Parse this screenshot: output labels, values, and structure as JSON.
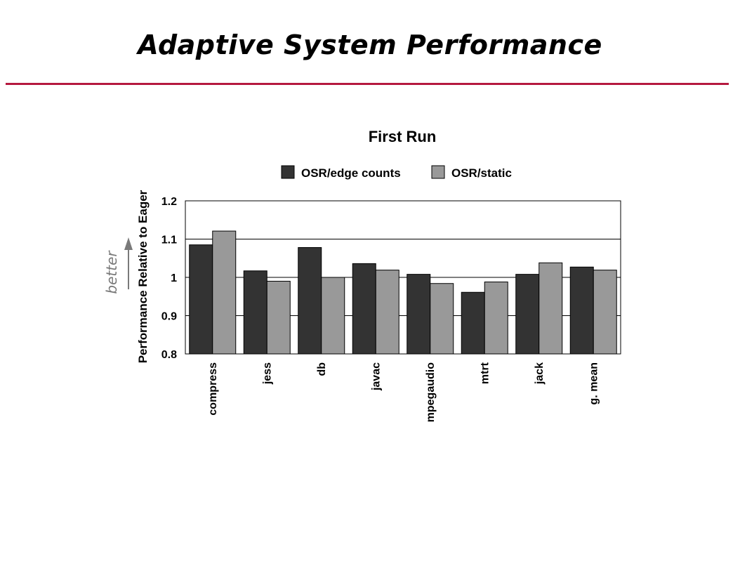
{
  "slide": {
    "title": "Adaptive System Performance",
    "rule_color": "#b5193f"
  },
  "annotation": {
    "label": "better",
    "color": "#7a7a7a"
  },
  "chart_data": {
    "type": "bar",
    "title": "First Run",
    "xlabel": "",
    "ylabel": "Performance Relative to Eager",
    "ylim": [
      0.8,
      1.2
    ],
    "yticks": [
      0.8,
      0.9,
      1,
      1.1,
      1.2
    ],
    "ytick_labels": [
      "0.8",
      "0.9",
      "1",
      "1.1",
      "1.2"
    ],
    "grid": true,
    "legend_position": "top-center",
    "categories": [
      "compress",
      "jess",
      "db",
      "javac",
      "mpegaudio",
      "mtrt",
      "jack",
      "g. mean"
    ],
    "series": [
      {
        "name": "OSR/edge counts",
        "color": "#333333",
        "values": [
          1.085,
          1.017,
          1.078,
          1.036,
          1.008,
          0.961,
          1.008,
          1.027
        ]
      },
      {
        "name": "OSR/static",
        "color": "#999999",
        "values": [
          1.121,
          0.99,
          1.0,
          1.019,
          0.984,
          0.988,
          1.038,
          1.019
        ]
      }
    ]
  }
}
